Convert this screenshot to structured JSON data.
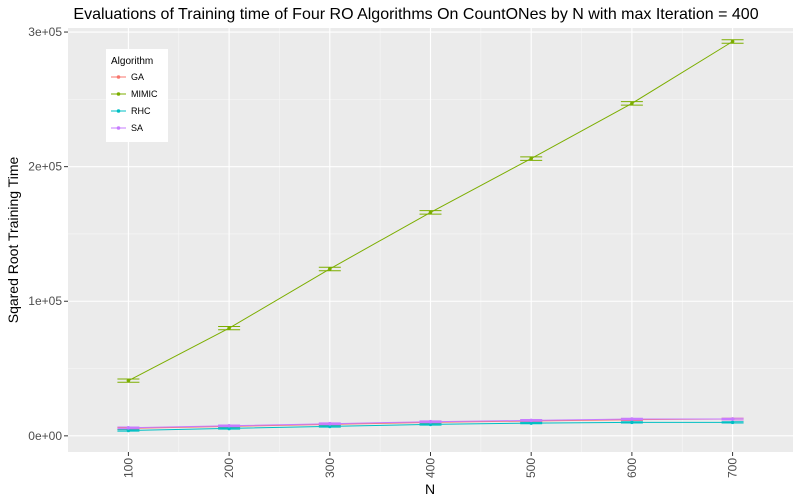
{
  "chart_data": {
    "type": "line",
    "title": "Evaluations of Training time of Four RO Algorithms On CountONes by N with max Iteration = 400",
    "xlabel": "N",
    "ylabel": "Sqared Root Training Time",
    "x": [
      100,
      200,
      300,
      400,
      500,
      600,
      700
    ],
    "x_tick_labels": [
      "100",
      "200",
      "300",
      "400",
      "500",
      "600",
      "700"
    ],
    "xlim": [
      40,
      760
    ],
    "ylim": [
      -12000,
      303000
    ],
    "y_ticks": [
      0,
      100000,
      200000,
      300000
    ],
    "y_tick_labels": [
      "0e+00",
      "1e+05",
      "2e+05",
      "3e+05"
    ],
    "grid": true,
    "error_bars": true,
    "legend": {
      "title": "Algorithm",
      "position": "top-left"
    },
    "series": [
      {
        "name": "GA",
        "color": "#F8766D",
        "values": [
          5500,
          7000,
          8500,
          10000,
          11000,
          12000,
          12500
        ],
        "err": [
          600,
          600,
          600,
          600,
          600,
          600,
          600
        ]
      },
      {
        "name": "MIMIC",
        "color": "#7CAE00",
        "values": [
          41000,
          80000,
          124000,
          166000,
          206000,
          247000,
          293000
        ],
        "err": [
          1200,
          1200,
          1300,
          1300,
          1300,
          1300,
          1300
        ]
      },
      {
        "name": "RHC",
        "color": "#00BFC4",
        "values": [
          4000,
          5500,
          7000,
          8500,
          9500,
          10000,
          10000
        ],
        "err": [
          500,
          500,
          500,
          500,
          500,
          500,
          500
        ]
      },
      {
        "name": "SA",
        "color": "#C77CFF",
        "values": [
          6000,
          7500,
          9000,
          10500,
          11500,
          12500,
          12500
        ],
        "err": [
          600,
          600,
          600,
          600,
          600,
          600,
          600
        ]
      }
    ]
  }
}
